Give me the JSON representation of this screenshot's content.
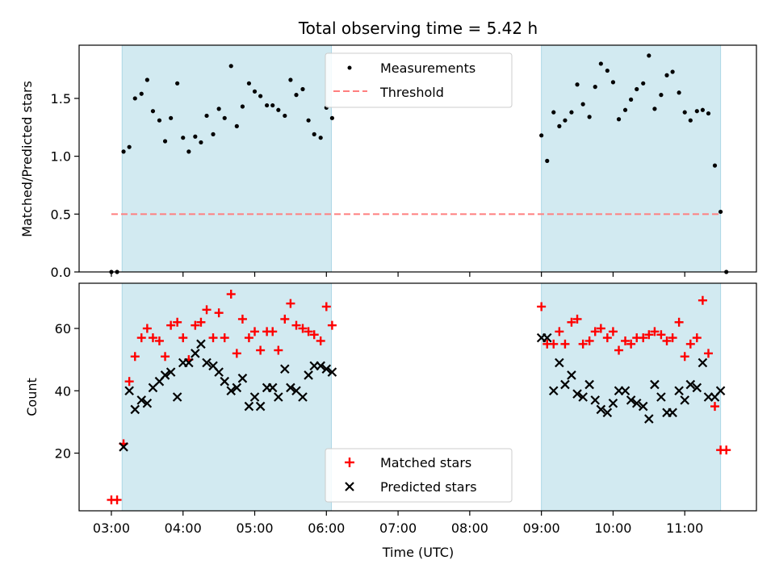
{
  "chart_data": {
    "title": "Total observing time = 5.42 h",
    "xlabel": "Time (UTC)",
    "x_ticks": [
      "03:00",
      "04:00",
      "05:00",
      "06:00",
      "07:00",
      "08:00",
      "09:00",
      "10:00",
      "11:00"
    ],
    "x_tick_hours": [
      3,
      4,
      5,
      6,
      7,
      8,
      9,
      10,
      11
    ],
    "xlim": [
      2.55,
      12.0
    ],
    "shaded_intervals": [
      [
        3.15,
        6.07
      ],
      [
        9.0,
        11.5
      ]
    ],
    "shade_color": "#add8e6",
    "top": {
      "type": "scatter",
      "ylabel": "Matched/Predicted stars",
      "ylim": [
        0,
        1.96
      ],
      "y_ticks": [
        0.0,
        0.5,
        1.0,
        1.5
      ],
      "y_tick_labels": [
        "0.0",
        "0.5",
        "1.0",
        "1.5"
      ],
      "legend": {
        "placement": "top-center",
        "items": [
          "Measurements",
          "Threshold"
        ]
      },
      "threshold": {
        "name": "Threshold",
        "value": 0.5,
        "x_range": [
          3.0,
          11.5
        ],
        "color": "#ff7f7f"
      },
      "measurements": {
        "name": "Measurements",
        "color": "#000000",
        "points": [
          [
            3.0,
            0.0
          ],
          [
            3.08,
            0.0
          ],
          [
            3.17,
            1.04
          ],
          [
            3.25,
            1.08
          ],
          [
            3.33,
            1.5
          ],
          [
            3.42,
            1.54
          ],
          [
            3.5,
            1.66
          ],
          [
            3.58,
            1.39
          ],
          [
            3.67,
            1.31
          ],
          [
            3.75,
            1.13
          ],
          [
            3.83,
            1.33
          ],
          [
            3.92,
            1.63
          ],
          [
            4.0,
            1.16
          ],
          [
            4.08,
            1.04
          ],
          [
            4.17,
            1.17
          ],
          [
            4.25,
            1.12
          ],
          [
            4.33,
            1.35
          ],
          [
            4.42,
            1.19
          ],
          [
            4.5,
            1.41
          ],
          [
            4.58,
            1.33
          ],
          [
            4.67,
            1.78
          ],
          [
            4.75,
            1.26
          ],
          [
            4.83,
            1.43
          ],
          [
            4.92,
            1.63
          ],
          [
            5.0,
            1.56
          ],
          [
            5.08,
            1.52
          ],
          [
            5.17,
            1.44
          ],
          [
            5.25,
            1.44
          ],
          [
            5.33,
            1.4
          ],
          [
            5.42,
            1.35
          ],
          [
            5.5,
            1.66
          ],
          [
            5.58,
            1.53
          ],
          [
            5.67,
            1.58
          ],
          [
            5.75,
            1.31
          ],
          [
            5.83,
            1.19
          ],
          [
            5.92,
            1.16
          ],
          [
            6.0,
            1.42
          ],
          [
            6.08,
            1.33
          ],
          [
            9.0,
            1.18
          ],
          [
            9.08,
            0.96
          ],
          [
            9.17,
            1.38
          ],
          [
            9.25,
            1.26
          ],
          [
            9.33,
            1.31
          ],
          [
            9.42,
            1.38
          ],
          [
            9.5,
            1.62
          ],
          [
            9.58,
            1.45
          ],
          [
            9.67,
            1.34
          ],
          [
            9.75,
            1.6
          ],
          [
            9.83,
            1.8
          ],
          [
            9.92,
            1.74
          ],
          [
            10.0,
            1.64
          ],
          [
            10.08,
            1.32
          ],
          [
            10.17,
            1.4
          ],
          [
            10.25,
            1.49
          ],
          [
            10.33,
            1.58
          ],
          [
            10.42,
            1.63
          ],
          [
            10.5,
            1.87
          ],
          [
            10.58,
            1.41
          ],
          [
            10.67,
            1.53
          ],
          [
            10.75,
            1.7
          ],
          [
            10.83,
            1.73
          ],
          [
            10.92,
            1.55
          ],
          [
            11.0,
            1.38
          ],
          [
            11.08,
            1.31
          ],
          [
            11.17,
            1.39
          ],
          [
            11.25,
            1.4
          ],
          [
            11.33,
            1.37
          ],
          [
            11.42,
            0.92
          ],
          [
            11.5,
            0.52
          ],
          [
            11.58,
            0.0
          ]
        ]
      }
    },
    "bottom": {
      "type": "scatter",
      "ylabel": "Count",
      "ylim": [
        1.5,
        74.5
      ],
      "y_ticks": [
        20,
        40,
        60
      ],
      "y_tick_labels": [
        "20",
        "40",
        "60"
      ],
      "legend": {
        "placement": "bottom-center",
        "items": [
          "Matched stars",
          "Predicted stars"
        ]
      },
      "series": [
        {
          "name": "Matched stars",
          "marker": "plus",
          "color": "#ff0000",
          "points": [
            [
              3.0,
              5
            ],
            [
              3.08,
              5
            ],
            [
              3.17,
              23
            ],
            [
              3.25,
              43
            ],
            [
              3.33,
              51
            ],
            [
              3.42,
              57
            ],
            [
              3.5,
              60
            ],
            [
              3.58,
              57
            ],
            [
              3.67,
              56
            ],
            [
              3.75,
              51
            ],
            [
              3.83,
              61
            ],
            [
              3.92,
              62
            ],
            [
              4.0,
              57
            ],
            [
              4.08,
              50
            ],
            [
              4.17,
              61
            ],
            [
              4.25,
              62
            ],
            [
              4.33,
              66
            ],
            [
              4.42,
              57
            ],
            [
              4.5,
              65
            ],
            [
              4.58,
              57
            ],
            [
              4.67,
              71
            ],
            [
              4.75,
              52
            ],
            [
              4.83,
              63
            ],
            [
              4.92,
              57
            ],
            [
              5.0,
              59
            ],
            [
              5.08,
              53
            ],
            [
              5.17,
              59
            ],
            [
              5.25,
              59
            ],
            [
              5.33,
              53
            ],
            [
              5.42,
              63
            ],
            [
              5.5,
              68
            ],
            [
              5.58,
              61
            ],
            [
              5.67,
              60
            ],
            [
              5.75,
              59
            ],
            [
              5.83,
              58
            ],
            [
              5.92,
              56
            ],
            [
              6.0,
              67
            ],
            [
              6.08,
              61
            ],
            [
              9.0,
              67
            ],
            [
              9.08,
              55
            ],
            [
              9.17,
              55
            ],
            [
              9.25,
              59
            ],
            [
              9.33,
              55
            ],
            [
              9.42,
              62
            ],
            [
              9.5,
              63
            ],
            [
              9.58,
              55
            ],
            [
              9.67,
              56
            ],
            [
              9.75,
              59
            ],
            [
              9.83,
              60
            ],
            [
              9.92,
              57
            ],
            [
              10.0,
              59
            ],
            [
              10.08,
              53
            ],
            [
              10.17,
              56
            ],
            [
              10.25,
              55
            ],
            [
              10.33,
              57
            ],
            [
              10.42,
              57
            ],
            [
              10.5,
              58
            ],
            [
              10.58,
              59
            ],
            [
              10.67,
              58
            ],
            [
              10.75,
              56
            ],
            [
              10.83,
              57
            ],
            [
              10.92,
              62
            ],
            [
              11.0,
              51
            ],
            [
              11.08,
              55
            ],
            [
              11.17,
              57
            ],
            [
              11.25,
              69
            ],
            [
              11.33,
              52
            ],
            [
              11.42,
              35
            ],
            [
              11.5,
              21
            ],
            [
              11.58,
              21
            ]
          ]
        },
        {
          "name": "Predicted stars",
          "marker": "x",
          "color": "#000000",
          "points": [
            [
              3.17,
              22
            ],
            [
              3.25,
              40
            ],
            [
              3.33,
              34
            ],
            [
              3.42,
              37
            ],
            [
              3.5,
              36
            ],
            [
              3.58,
              41
            ],
            [
              3.67,
              43
            ],
            [
              3.75,
              45
            ],
            [
              3.83,
              46
            ],
            [
              3.92,
              38
            ],
            [
              4.0,
              49
            ],
            [
              4.08,
              49
            ],
            [
              4.17,
              52
            ],
            [
              4.25,
              55
            ],
            [
              4.33,
              49
            ],
            [
              4.42,
              48
            ],
            [
              4.5,
              46
            ],
            [
              4.58,
              43
            ],
            [
              4.67,
              40
            ],
            [
              4.75,
              41
            ],
            [
              4.83,
              44
            ],
            [
              4.92,
              35
            ],
            [
              5.0,
              38
            ],
            [
              5.08,
              35
            ],
            [
              5.17,
              41
            ],
            [
              5.25,
              41
            ],
            [
              5.33,
              38
            ],
            [
              5.42,
              47
            ],
            [
              5.5,
              41
            ],
            [
              5.58,
              40
            ],
            [
              5.67,
              38
            ],
            [
              5.75,
              45
            ],
            [
              5.83,
              48
            ],
            [
              5.92,
              48
            ],
            [
              6.0,
              47
            ],
            [
              6.08,
              46
            ],
            [
              9.0,
              57
            ],
            [
              9.08,
              57
            ],
            [
              9.17,
              40
            ],
            [
              9.25,
              49
            ],
            [
              9.33,
              42
            ],
            [
              9.42,
              45
            ],
            [
              9.5,
              39
            ],
            [
              9.58,
              38
            ],
            [
              9.67,
              42
            ],
            [
              9.75,
              37
            ],
            [
              9.83,
              34
            ],
            [
              9.92,
              33
            ],
            [
              10.0,
              36
            ],
            [
              10.08,
              40
            ],
            [
              10.17,
              40
            ],
            [
              10.25,
              37
            ],
            [
              10.33,
              36
            ],
            [
              10.42,
              35
            ],
            [
              10.5,
              31
            ],
            [
              10.58,
              42
            ],
            [
              10.67,
              38
            ],
            [
              10.75,
              33
            ],
            [
              10.83,
              33
            ],
            [
              10.92,
              40
            ],
            [
              11.0,
              37
            ],
            [
              11.08,
              42
            ],
            [
              11.17,
              41
            ],
            [
              11.25,
              49
            ],
            [
              11.33,
              38
            ],
            [
              11.42,
              38
            ],
            [
              11.5,
              40
            ]
          ]
        }
      ]
    }
  }
}
